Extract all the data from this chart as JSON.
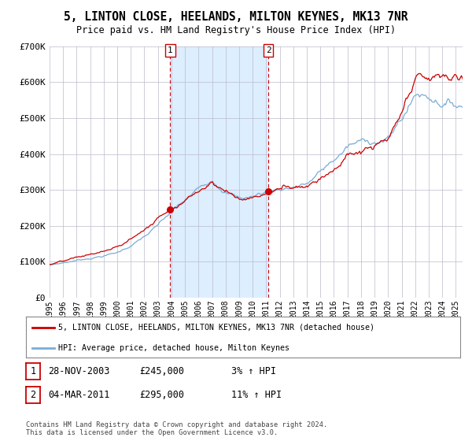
{
  "title": "5, LINTON CLOSE, HEELANDS, MILTON KEYNES, MK13 7NR",
  "subtitle": "Price paid vs. HM Land Registry's House Price Index (HPI)",
  "legend_line1": "5, LINTON CLOSE, HEELANDS, MILTON KEYNES, MK13 7NR (detached house)",
  "legend_line2": "HPI: Average price, detached house, Milton Keynes",
  "annotation1_date": "28-NOV-2003",
  "annotation1_price": "£245,000",
  "annotation1_hpi": "3% ↑ HPI",
  "annotation2_date": "04-MAR-2011",
  "annotation2_price": "£295,000",
  "annotation2_hpi": "11% ↑ HPI",
  "footer": "Contains HM Land Registry data © Crown copyright and database right 2024.\nThis data is licensed under the Open Government Licence v3.0.",
  "red_color": "#cc0000",
  "blue_color": "#7aadd4",
  "shade_color": "#ddeeff",
  "grid_color": "#bbbbcc",
  "background_color": "#ffffff",
  "purchase1_year": 2003.91,
  "purchase2_year": 2011.17,
  "purchase1_value": 245000,
  "purchase2_value": 295000,
  "ylim": [
    0,
    700000
  ],
  "xlim_start": 1995,
  "xlim_end": 2025.5,
  "yticks": [
    0,
    100000,
    200000,
    300000,
    400000,
    500000,
    600000,
    700000
  ],
  "ytick_labels": [
    "£0",
    "£100K",
    "£200K",
    "£300K",
    "£400K",
    "£500K",
    "£600K",
    "£700K"
  ],
  "xticks": [
    1995,
    1996,
    1997,
    1998,
    1999,
    2000,
    2001,
    2002,
    2003,
    2004,
    2005,
    2006,
    2007,
    2008,
    2009,
    2010,
    2011,
    2012,
    2013,
    2014,
    2015,
    2016,
    2017,
    2018,
    2019,
    2020,
    2021,
    2022,
    2023,
    2024,
    2025
  ]
}
